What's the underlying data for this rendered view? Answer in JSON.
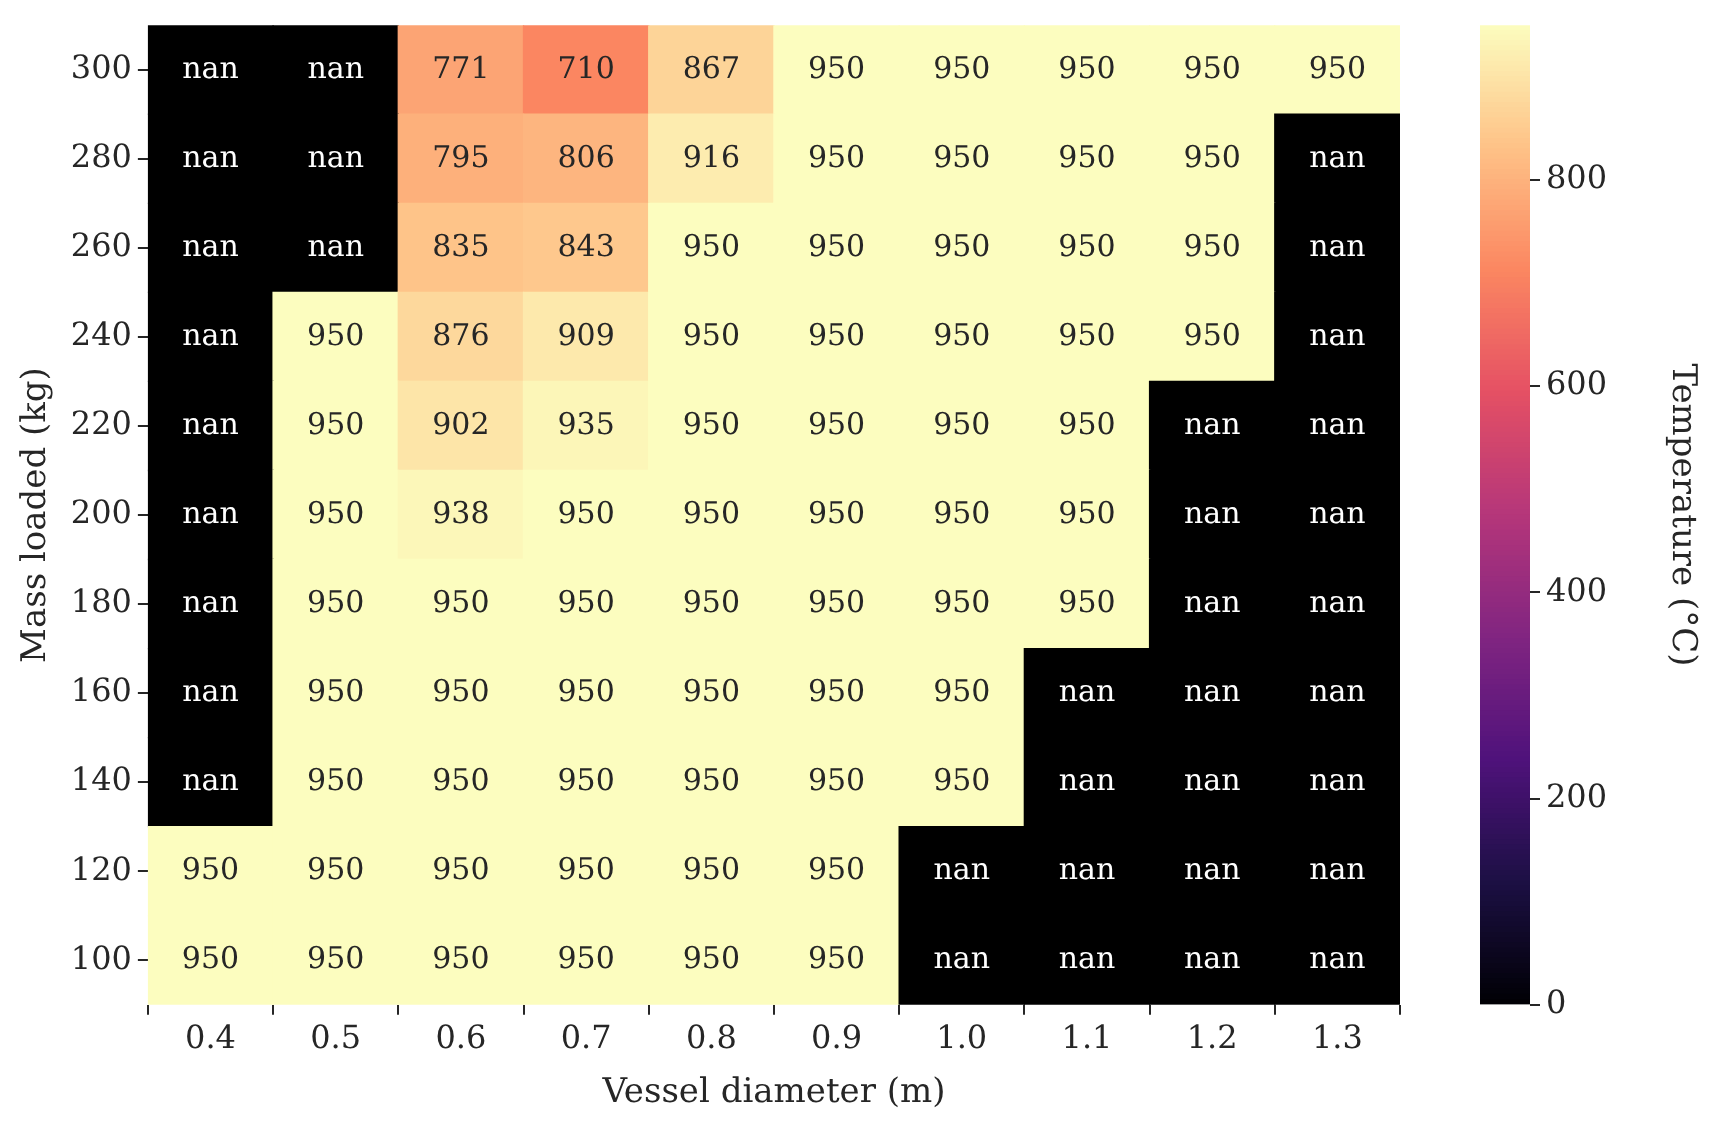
{
  "chart_data": {
    "type": "heatmap",
    "xlabel": "Vessel diameter (m)",
    "ylabel": "Mass loaded (kg)",
    "clabel": "Temperature (°C)",
    "categories": [
      "0.4",
      "0.5",
      "0.6",
      "0.7",
      "0.8",
      "0.9",
      "1.0",
      "1.1",
      "1.2",
      "1.3"
    ],
    "y_categories": [
      "300",
      "280",
      "260",
      "240",
      "220",
      "200",
      "180",
      "160",
      "140",
      "120",
      "100"
    ],
    "cells": [
      [
        null,
        null,
        771,
        710,
        867,
        950,
        950,
        950,
        950,
        950
      ],
      [
        null,
        null,
        795,
        806,
        916,
        950,
        950,
        950,
        950,
        null
      ],
      [
        null,
        null,
        835,
        843,
        950,
        950,
        950,
        950,
        950,
        null
      ],
      [
        null,
        950,
        876,
        909,
        950,
        950,
        950,
        950,
        950,
        null
      ],
      [
        null,
        950,
        902,
        935,
        950,
        950,
        950,
        950,
        null,
        null
      ],
      [
        null,
        950,
        938,
        950,
        950,
        950,
        950,
        950,
        null,
        null
      ],
      [
        null,
        950,
        950,
        950,
        950,
        950,
        950,
        950,
        null,
        null
      ],
      [
        null,
        950,
        950,
        950,
        950,
        950,
        950,
        null,
        null,
        null
      ],
      [
        null,
        950,
        950,
        950,
        950,
        950,
        950,
        null,
        null,
        null
      ],
      [
        950,
        950,
        950,
        950,
        950,
        950,
        null,
        null,
        null,
        null
      ],
      [
        950,
        950,
        950,
        950,
        950,
        950,
        null,
        null,
        null,
        null
      ]
    ],
    "cell_labels": [
      [
        "nan",
        "nan",
        "771",
        "710",
        "867",
        "950",
        "950",
        "950",
        "950",
        "950"
      ],
      [
        "nan",
        "nan",
        "795",
        "806",
        "916",
        "950",
        "950",
        "950",
        "950",
        "nan"
      ],
      [
        "nan",
        "nan",
        "835",
        "843",
        "950",
        "950",
        "950",
        "950",
        "950",
        "nan"
      ],
      [
        "nan",
        "950",
        "876",
        "909",
        "950",
        "950",
        "950",
        "950",
        "950",
        "nan"
      ],
      [
        "nan",
        "950",
        "902",
        "935",
        "950",
        "950",
        "950",
        "950",
        "nan",
        "nan"
      ],
      [
        "nan",
        "950",
        "938",
        "950",
        "950",
        "950",
        "950",
        "950",
        "nan",
        "nan"
      ],
      [
        "nan",
        "950",
        "950",
        "950",
        "950",
        "950",
        "950",
        "950",
        "nan",
        "nan"
      ],
      [
        "nan",
        "950",
        "950",
        "950",
        "950",
        "950",
        "950",
        "nan",
        "nan",
        "nan"
      ],
      [
        "nan",
        "950",
        "950",
        "950",
        "950",
        "950",
        "950",
        "nan",
        "nan",
        "nan"
      ],
      [
        "950",
        "950",
        "950",
        "950",
        "950",
        "950",
        "nan",
        "nan",
        "nan",
        "nan"
      ],
      [
        "950",
        "950",
        "950",
        "950",
        "950",
        "950",
        "nan",
        "nan",
        "nan",
        "nan"
      ]
    ],
    "clim": [
      0,
      950
    ],
    "cticks": [
      0,
      200,
      400,
      600,
      800
    ]
  }
}
